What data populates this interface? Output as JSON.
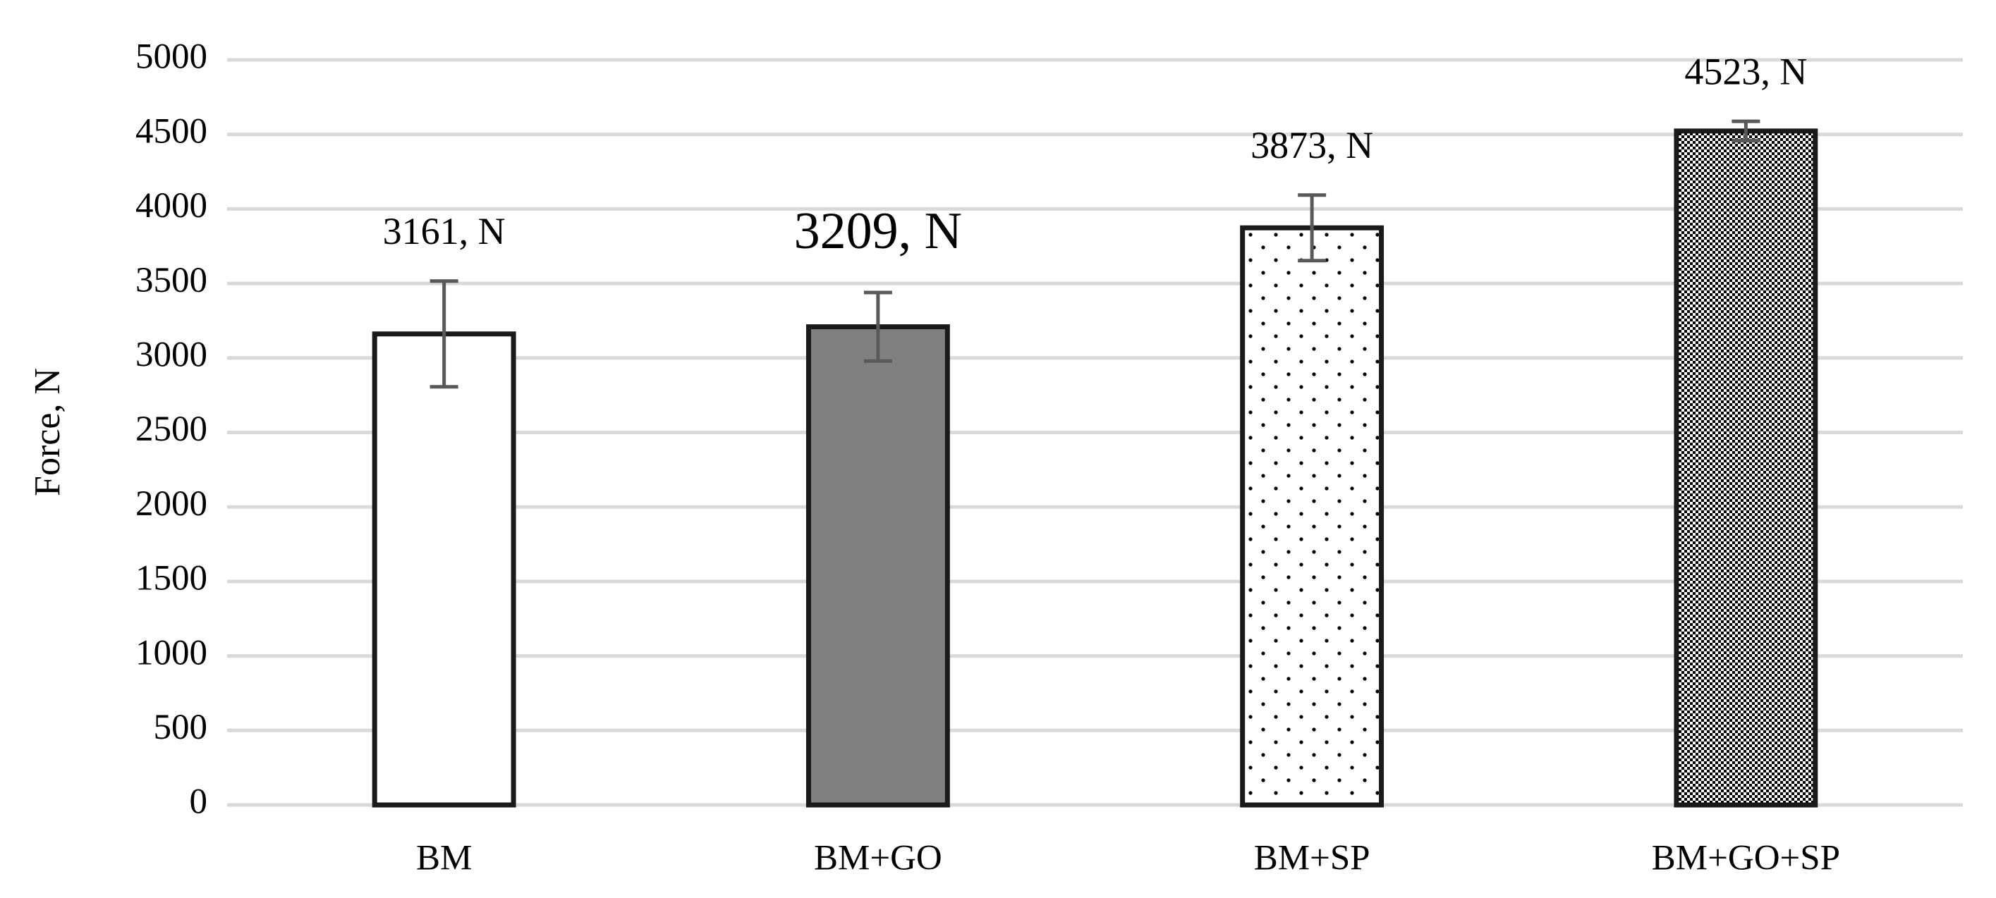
{
  "chart_data": {
    "type": "bar",
    "y_label": "Force, N",
    "categories": [
      "BM",
      "BM+GO",
      "BM+SP",
      "BM+GO+SP"
    ],
    "values": [
      3161,
      3209,
      3873,
      4523
    ],
    "value_labels": [
      "3161, N",
      "3209, N",
      "3873, N",
      "4523, N"
    ],
    "errors": [
      355,
      230,
      220,
      65
    ],
    "colors": [
      "#ffffff",
      "#808080",
      "#ffffff",
      "#ffffff"
    ],
    "patterns": [
      "solid",
      "solid",
      "dots",
      "checker"
    ],
    "ylim": [
      0,
      5000
    ],
    "yticks": [
      0,
      500,
      1000,
      1500,
      2000,
      2500,
      3000,
      3500,
      4000,
      4500,
      5000
    ],
    "grid": true
  }
}
